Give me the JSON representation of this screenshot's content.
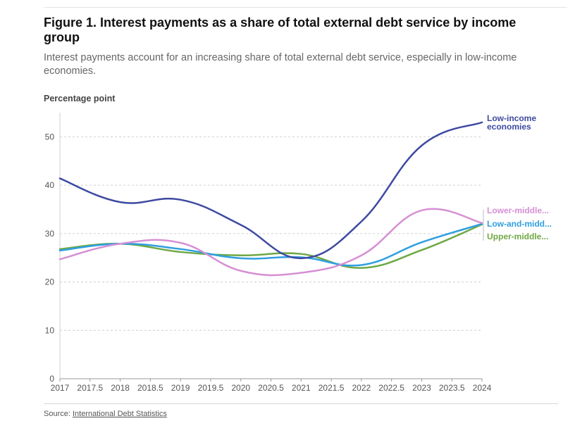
{
  "figure": {
    "title": "Figure 1. Interest payments as a share of total external debt service by income group",
    "subtitle": "Interest payments account for an increasing share of total external debt service, especially in low-income economies.",
    "source_label": "Source:",
    "source_link": "International Debt Statistics"
  },
  "chart_data": {
    "type": "line",
    "title": "Figure 1. Interest payments as a share of total external debt service by income group",
    "ylabel": "Percentage point",
    "xlabel": "",
    "xlim": [
      2017,
      2024
    ],
    "ylim": [
      0,
      55
    ],
    "x_ticks": [
      "2017",
      "2017.5",
      "2018",
      "2018.5",
      "2019",
      "2019.5",
      "2020",
      "2020.5",
      "2021",
      "2021.5",
      "2022",
      "2022.5",
      "2023",
      "2023.5",
      "2024"
    ],
    "y_ticks": [
      "0",
      "10",
      "20",
      "30",
      "40",
      "50"
    ],
    "grid": "horizontal dashed",
    "x": [
      2017,
      2018,
      2019,
      2020,
      2021,
      2022,
      2023,
      2024
    ],
    "series": [
      {
        "name": "Low-income economies",
        "label_lines": [
          "Low-income",
          "economies"
        ],
        "color": "#3d4aa0",
        "values": [
          41.4,
          36.5,
          37.0,
          31.8,
          24.9,
          32.5,
          48.2,
          53.0
        ]
      },
      {
        "name": "Lower-middle...",
        "label_lines": [
          "Lower-middle..."
        ],
        "color": "#d68fd4",
        "values": [
          24.7,
          27.9,
          28.1,
          22.3,
          21.9,
          25.5,
          34.8,
          32.2
        ]
      },
      {
        "name": "Low-and-midd...",
        "label_lines": [
          "Low-and-midd..."
        ],
        "color": "#2f9fe0",
        "values": [
          26.5,
          27.9,
          26.8,
          24.9,
          25.1,
          23.5,
          28.2,
          32.0
        ]
      },
      {
        "name": "Upper-middle...",
        "label_lines": [
          "Upper-middle..."
        ],
        "color": "#6ea844",
        "values": [
          26.8,
          27.9,
          26.2,
          25.5,
          25.8,
          22.9,
          26.6,
          31.9
        ]
      }
    ]
  }
}
